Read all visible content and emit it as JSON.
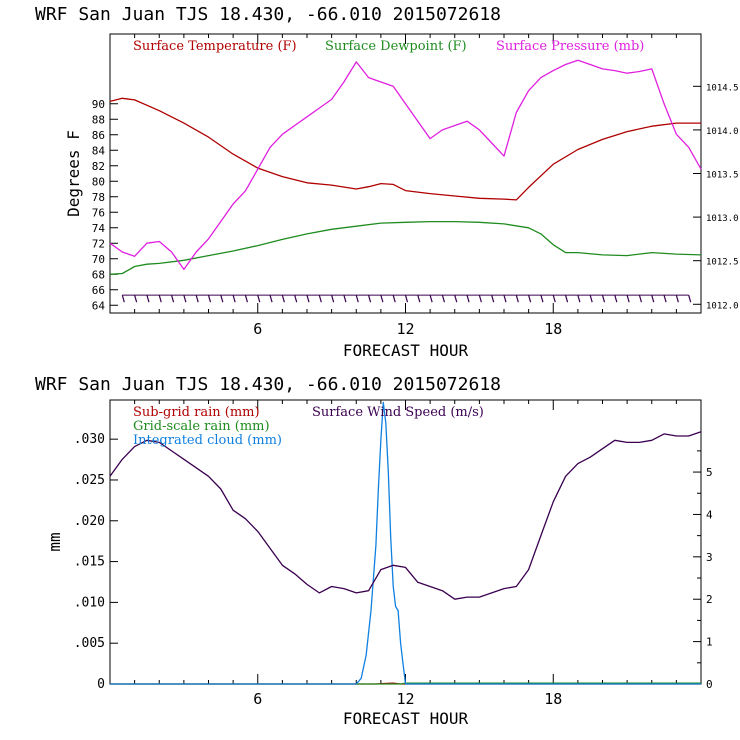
{
  "chart_data": [
    {
      "type": "line",
      "title": "WRF  San Juan TJS  18.430, -66.010  2015072618",
      "xlabel": "FORECAST HOUR",
      "ylabel": "Degrees F",
      "xlim": [
        0,
        24
      ],
      "ylim": [
        63,
        99
      ],
      "y2lim": [
        1011.9,
        1015.1
      ],
      "x_ticks": [
        6,
        12,
        18
      ],
      "y_ticks": [
        64,
        66,
        68,
        70,
        72,
        74,
        76,
        78,
        80,
        82,
        84,
        86,
        88,
        90
      ],
      "y2_ticks": [
        1012.0,
        1012.5,
        1013.0,
        1013.5,
        1014.0,
        1014.5
      ],
      "y2_tick_labels": [
        "1012.0",
        "1012.5",
        "1013.0",
        "1013.5",
        "1014.0",
        "1014.5"
      ],
      "legend": [
        "Surface Temperature (F)",
        "Surface Dewpoint (F)",
        "Surface Pressure (mb)"
      ],
      "series": [
        {
          "name": "Surface Temperature (F)",
          "color": "#b00000",
          "axis": "left",
          "x": [
            0,
            0.5,
            1,
            2,
            3,
            4,
            5,
            6,
            7,
            8,
            9,
            10,
            10.5,
            11,
            11.5,
            12,
            13,
            14,
            15,
            16,
            16.5,
            17,
            18,
            19,
            20,
            21,
            22,
            23,
            24
          ],
          "y": [
            90.3,
            90.7,
            90.5,
            89.1,
            87.5,
            85.7,
            83.5,
            81.7,
            80.6,
            79.8,
            79.5,
            79.0,
            79.3,
            79.7,
            79.6,
            78.8,
            78.4,
            78.1,
            77.8,
            77.7,
            77.6,
            79.2,
            82.2,
            84.1,
            85.4,
            86.4,
            87.1,
            87.5,
            87.5
          ]
        },
        {
          "name": "Surface Dewpoint (F)",
          "color": "#1f8c1f",
          "axis": "left",
          "x": [
            0,
            0.5,
            1,
            1.5,
            2,
            3,
            4,
            5,
            6,
            7,
            8,
            9,
            10,
            11,
            12,
            13,
            14,
            15,
            16,
            17,
            17.5,
            18,
            18.5,
            19,
            20,
            21,
            22,
            23,
            24
          ],
          "y": [
            68.0,
            68.1,
            69.0,
            69.3,
            69.4,
            69.8,
            70.4,
            71.0,
            71.7,
            72.5,
            73.2,
            73.8,
            74.2,
            74.6,
            74.7,
            74.8,
            74.8,
            74.7,
            74.5,
            74.0,
            73.2,
            71.8,
            70.8,
            70.8,
            70.5,
            70.4,
            70.8,
            70.6,
            70.5
          ]
        },
        {
          "name": "Surface Pressure (mb)",
          "color": "#e020e0",
          "axis": "right",
          "x": [
            0,
            0.5,
            1,
            1.5,
            2,
            2.5,
            3,
            3.5,
            4,
            4.5,
            5,
            5.5,
            6,
            6.5,
            7,
            7.5,
            8,
            8.5,
            9,
            9.5,
            10,
            10.5,
            11,
            11.5,
            12,
            12.5,
            13,
            13.5,
            14,
            14.5,
            15,
            15.5,
            16,
            16.5,
            17,
            17.5,
            18,
            18.5,
            19,
            19.5,
            20,
            20.5,
            21,
            21.5,
            22,
            22.5,
            23,
            23.5,
            24
          ],
          "y": [
            1012.7,
            1012.6,
            1012.55,
            1012.7,
            1012.72,
            1012.6,
            1012.4,
            1012.6,
            1012.75,
            1012.95,
            1013.15,
            1013.3,
            1013.55,
            1013.8,
            1013.95,
            1014.05,
            1014.15,
            1014.25,
            1014.35,
            1014.55,
            1014.78,
            1014.6,
            1014.55,
            1014.5,
            1014.3,
            1014.1,
            1013.9,
            1014.0,
            1014.05,
            1014.1,
            1014.0,
            1013.85,
            1013.7,
            1014.2,
            1014.45,
            1014.6,
            1014.68,
            1014.75,
            1014.8,
            1014.75,
            1014.7,
            1014.68,
            1014.65,
            1014.67,
            1014.7,
            1014.3,
            1013.95,
            1013.8,
            1013.55
          ]
        }
      ],
      "wind_barbs": {
        "color": "#3a0050",
        "level": 65.3,
        "hours": [
          0.5,
          1,
          1.5,
          2,
          2.5,
          3,
          3.5,
          4,
          4.5,
          5,
          5.5,
          6,
          6.5,
          7,
          7.5,
          8,
          8.5,
          9,
          9.5,
          10,
          10.5,
          11,
          11.5,
          12,
          12.5,
          13,
          13.5,
          14,
          14.5,
          15,
          15.5,
          16,
          16.5,
          17,
          17.5,
          18,
          18.5,
          19,
          19.5,
          20,
          20.5,
          21,
          21.5,
          22,
          22.5,
          23,
          23.5
        ]
      }
    },
    {
      "type": "line",
      "title": "WRF  San Juan TJS  18.430, -66.010  2015072618",
      "xlabel": "FORECAST HOUR",
      "ylabel": "mm",
      "xlim": [
        0,
        24
      ],
      "ylim": [
        0,
        0.0348
      ],
      "y2lim": [
        0,
        6.7
      ],
      "x_ticks": [
        6,
        12,
        18
      ],
      "y_ticks": [
        0,
        0.005,
        0.01,
        0.015,
        0.02,
        0.025,
        0.03
      ],
      "y_tick_labels": [
        "0",
        ".005",
        ".010",
        ".015",
        ".020",
        ".025",
        ".030"
      ],
      "y2_ticks": [
        0,
        1,
        2,
        3,
        4,
        5
      ],
      "legend": [
        "Sub-grid rain (mm)",
        "Grid-scale rain (mm)",
        "Integrated cloud (mm)",
        "Surface Wind Speed (m/s)"
      ],
      "series": [
        {
          "name": "Sub-grid rain (mm)",
          "color": "#b00000",
          "axis": "left",
          "x": [
            0,
            10.8,
            11,
            11.5,
            11.8,
            24
          ],
          "y": [
            0,
            0,
            5e-05,
            0.0001,
            0,
            0
          ]
        },
        {
          "name": "Grid-scale rain (mm)",
          "color": "#1f8c1f",
          "axis": "left",
          "x": [
            0,
            11.8,
            12,
            24
          ],
          "y": [
            0,
            0,
            0.0001,
            0.0001
          ]
        },
        {
          "name": "Integrated cloud (mm)",
          "color": "#1080e0",
          "axis": "left",
          "x": [
            0,
            10.0,
            10.2,
            10.4,
            10.6,
            10.8,
            10.9,
            11.0,
            11.1,
            11.2,
            11.3,
            11.4,
            11.5,
            11.6,
            11.7,
            11.8,
            11.9,
            12.0,
            24
          ],
          "y": [
            0,
            0,
            0.0007,
            0.0035,
            0.009,
            0.017,
            0.024,
            0.03,
            0.0345,
            0.032,
            0.026,
            0.018,
            0.012,
            0.0095,
            0.009,
            0.005,
            0.0025,
            0,
            0
          ]
        },
        {
          "name": "Surface Wind Speed (m/s)",
          "color": "#3a0050",
          "axis": "right",
          "x": [
            0,
            0.5,
            1,
            1.5,
            2,
            2.5,
            3,
            3.5,
            4,
            4.5,
            5,
            5.5,
            6,
            6.5,
            7,
            7.5,
            8,
            8.5,
            9,
            9.5,
            10,
            10.5,
            11,
            11.5,
            12,
            12.5,
            13,
            13.5,
            14,
            14.5,
            15,
            15.5,
            16,
            16.5,
            17,
            17.5,
            18,
            18.5,
            19,
            19.5,
            20,
            20.5,
            21,
            21.5,
            22,
            22.5,
            23,
            23.5,
            24
          ],
          "y": [
            4.9,
            5.3,
            5.6,
            5.75,
            5.7,
            5.5,
            5.3,
            5.1,
            4.9,
            4.6,
            4.1,
            3.9,
            3.6,
            3.2,
            2.8,
            2.6,
            2.35,
            2.15,
            2.3,
            2.25,
            2.15,
            2.2,
            2.7,
            2.8,
            2.75,
            2.4,
            2.3,
            2.2,
            2.0,
            2.05,
            2.05,
            2.15,
            2.25,
            2.3,
            2.7,
            3.5,
            4.3,
            4.9,
            5.2,
            5.35,
            5.55,
            5.75,
            5.7,
            5.7,
            5.75,
            5.9,
            5.85,
            5.85,
            5.95
          ]
        }
      ]
    }
  ]
}
